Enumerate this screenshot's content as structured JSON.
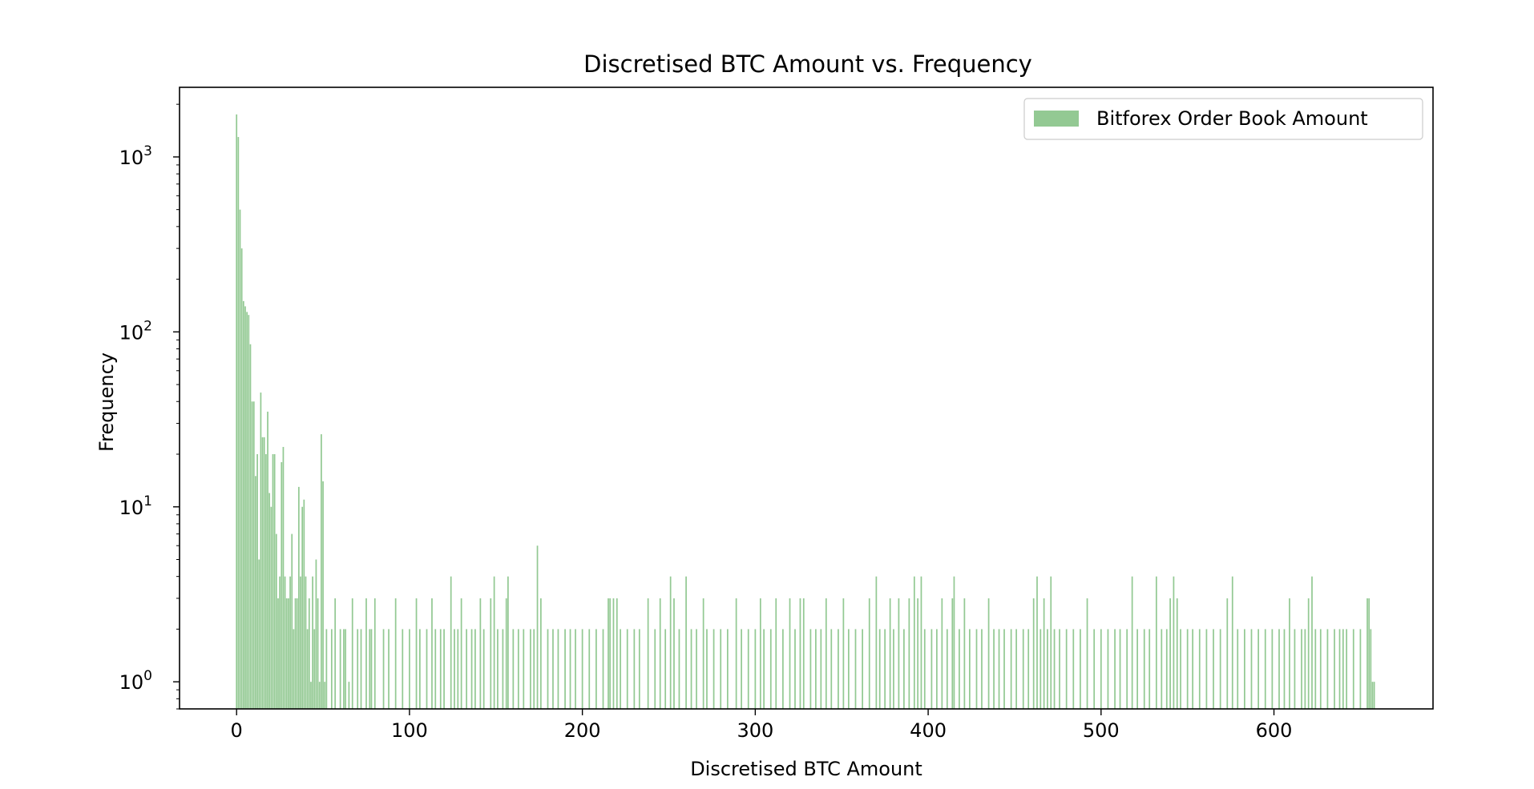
{
  "chart_data": {
    "type": "bar",
    "title": "Discretised BTC Amount vs. Frequency",
    "xlabel": "Discretised BTC Amount",
    "ylabel": "Frequency",
    "y_scale": "log",
    "xlim": [
      -33,
      692
    ],
    "ylim": [
      0.7,
      2500
    ],
    "x_ticks": [
      0,
      100,
      200,
      300,
      400,
      500,
      600
    ],
    "y_ticks": [
      {
        "value": 1,
        "base": "10",
        "exp": "0"
      },
      {
        "value": 10,
        "base": "10",
        "exp": "1"
      },
      {
        "value": 100,
        "base": "10",
        "exp": "2"
      },
      {
        "value": 1000,
        "base": "10",
        "exp": "3"
      }
    ],
    "grid": false,
    "legend_position": "upper right",
    "bar_color": "#93c993",
    "series": [
      {
        "name": "Bitforex Order Book Amount",
        "points": [
          [
            0,
            1750
          ],
          [
            1,
            1300
          ],
          [
            2,
            500
          ],
          [
            3,
            300
          ],
          [
            4,
            150
          ],
          [
            5,
            140
          ],
          [
            6,
            130
          ],
          [
            7,
            125
          ],
          [
            8,
            85
          ],
          [
            9,
            40
          ],
          [
            10,
            40
          ],
          [
            11,
            15
          ],
          [
            12,
            20
          ],
          [
            13,
            5
          ],
          [
            14,
            45
          ],
          [
            15,
            25
          ],
          [
            16,
            25
          ],
          [
            17,
            20
          ],
          [
            18,
            35
          ],
          [
            19,
            12
          ],
          [
            20,
            10
          ],
          [
            21,
            20
          ],
          [
            22,
            20
          ],
          [
            23,
            7
          ],
          [
            24,
            3
          ],
          [
            25,
            4
          ],
          [
            26,
            18
          ],
          [
            27,
            22
          ],
          [
            28,
            4
          ],
          [
            29,
            3
          ],
          [
            30,
            3
          ],
          [
            31,
            4
          ],
          [
            32,
            7
          ],
          [
            33,
            2
          ],
          [
            34,
            3
          ],
          [
            35,
            3
          ],
          [
            36,
            13
          ],
          [
            37,
            4
          ],
          [
            38,
            10
          ],
          [
            39,
            11
          ],
          [
            40,
            4
          ],
          [
            41,
            2
          ],
          [
            42,
            3
          ],
          [
            43,
            1
          ],
          [
            44,
            4
          ],
          [
            45,
            2
          ],
          [
            46,
            5
          ],
          [
            47,
            3
          ],
          [
            48,
            1
          ],
          [
            49,
            26
          ],
          [
            50,
            14
          ],
          [
            51,
            1
          ],
          [
            52,
            2
          ],
          [
            55,
            2
          ],
          [
            57,
            3
          ],
          [
            60,
            2
          ],
          [
            62,
            2
          ],
          [
            63,
            2
          ],
          [
            65,
            1
          ],
          [
            67,
            3
          ],
          [
            70,
            2
          ],
          [
            72,
            2
          ],
          [
            75,
            3
          ],
          [
            77,
            2
          ],
          [
            78,
            2
          ],
          [
            80,
            3
          ],
          [
            85,
            2
          ],
          [
            88,
            2
          ],
          [
            92,
            3
          ],
          [
            96,
            2
          ],
          [
            100,
            2
          ],
          [
            104,
            3
          ],
          [
            106,
            2
          ],
          [
            110,
            2
          ],
          [
            113,
            3
          ],
          [
            115,
            2
          ],
          [
            118,
            2
          ],
          [
            120,
            2
          ],
          [
            124,
            4
          ],
          [
            126,
            2
          ],
          [
            128,
            2
          ],
          [
            130,
            3
          ],
          [
            133,
            2
          ],
          [
            136,
            2
          ],
          [
            138,
            2
          ],
          [
            141,
            3
          ],
          [
            143,
            2
          ],
          [
            147,
            3
          ],
          [
            149,
            4
          ],
          [
            151,
            2
          ],
          [
            154,
            2
          ],
          [
            156,
            3
          ],
          [
            157,
            4
          ],
          [
            160,
            2
          ],
          [
            163,
            2
          ],
          [
            166,
            2
          ],
          [
            170,
            2
          ],
          [
            172,
            2
          ],
          [
            174,
            6
          ],
          [
            176,
            3
          ],
          [
            180,
            2
          ],
          [
            183,
            2
          ],
          [
            186,
            2
          ],
          [
            190,
            2
          ],
          [
            193,
            2
          ],
          [
            196,
            2
          ],
          [
            200,
            2
          ],
          [
            204,
            2
          ],
          [
            208,
            2
          ],
          [
            212,
            2
          ],
          [
            215,
            3
          ],
          [
            216,
            3
          ],
          [
            218,
            3
          ],
          [
            220,
            3
          ],
          [
            222,
            2
          ],
          [
            226,
            2
          ],
          [
            230,
            2
          ],
          [
            233,
            2
          ],
          [
            238,
            3
          ],
          [
            242,
            2
          ],
          [
            245,
            3
          ],
          [
            248,
            2
          ],
          [
            251,
            4
          ],
          [
            253,
            3
          ],
          [
            256,
            2
          ],
          [
            260,
            4
          ],
          [
            263,
            2
          ],
          [
            266,
            2
          ],
          [
            270,
            3
          ],
          [
            272,
            2
          ],
          [
            276,
            2
          ],
          [
            280,
            2
          ],
          [
            284,
            2
          ],
          [
            289,
            3
          ],
          [
            292,
            2
          ],
          [
            296,
            2
          ],
          [
            300,
            2
          ],
          [
            303,
            3
          ],
          [
            305,
            2
          ],
          [
            309,
            2
          ],
          [
            312,
            3
          ],
          [
            316,
            2
          ],
          [
            320,
            3
          ],
          [
            323,
            2
          ],
          [
            326,
            3
          ],
          [
            328,
            3
          ],
          [
            332,
            2
          ],
          [
            335,
            2
          ],
          [
            338,
            2
          ],
          [
            341,
            3
          ],
          [
            344,
            2
          ],
          [
            348,
            2
          ],
          [
            351,
            3
          ],
          [
            354,
            2
          ],
          [
            358,
            2
          ],
          [
            362,
            2
          ],
          [
            366,
            3
          ],
          [
            370,
            4
          ],
          [
            372,
            2
          ],
          [
            375,
            2
          ],
          [
            378,
            3
          ],
          [
            380,
            2
          ],
          [
            383,
            3
          ],
          [
            386,
            2
          ],
          [
            389,
            3
          ],
          [
            392,
            4
          ],
          [
            394,
            3
          ],
          [
            396,
            4
          ],
          [
            398,
            2
          ],
          [
            402,
            2
          ],
          [
            405,
            2
          ],
          [
            408,
            3
          ],
          [
            411,
            2
          ],
          [
            414,
            3
          ],
          [
            415,
            4
          ],
          [
            418,
            2
          ],
          [
            421,
            3
          ],
          [
            424,
            2
          ],
          [
            428,
            2
          ],
          [
            431,
            2
          ],
          [
            435,
            3
          ],
          [
            438,
            2
          ],
          [
            441,
            2
          ],
          [
            444,
            2
          ],
          [
            448,
            2
          ],
          [
            451,
            2
          ],
          [
            455,
            2
          ],
          [
            458,
            2
          ],
          [
            461,
            3
          ],
          [
            463,
            4
          ],
          [
            465,
            2
          ],
          [
            467,
            3
          ],
          [
            469,
            2
          ],
          [
            471,
            4
          ],
          [
            473,
            2
          ],
          [
            476,
            2
          ],
          [
            480,
            2
          ],
          [
            484,
            2
          ],
          [
            488,
            2
          ],
          [
            492,
            3
          ],
          [
            496,
            2
          ],
          [
            500,
            2
          ],
          [
            504,
            2
          ],
          [
            508,
            2
          ],
          [
            511,
            2
          ],
          [
            515,
            2
          ],
          [
            518,
            4
          ],
          [
            521,
            2
          ],
          [
            525,
            2
          ],
          [
            528,
            2
          ],
          [
            532,
            4
          ],
          [
            535,
            2
          ],
          [
            538,
            2
          ],
          [
            540,
            3
          ],
          [
            542,
            4
          ],
          [
            544,
            3
          ],
          [
            546,
            2
          ],
          [
            550,
            2
          ],
          [
            553,
            2
          ],
          [
            557,
            2
          ],
          [
            561,
            2
          ],
          [
            565,
            2
          ],
          [
            569,
            2
          ],
          [
            573,
            3
          ],
          [
            576,
            4
          ],
          [
            579,
            2
          ],
          [
            583,
            2
          ],
          [
            587,
            2
          ],
          [
            591,
            2
          ],
          [
            595,
            2
          ],
          [
            599,
            2
          ],
          [
            603,
            2
          ],
          [
            606,
            2
          ],
          [
            609,
            3
          ],
          [
            612,
            2
          ],
          [
            616,
            2
          ],
          [
            618,
            2
          ],
          [
            620,
            3
          ],
          [
            622,
            4
          ],
          [
            624,
            2
          ],
          [
            627,
            2
          ],
          [
            631,
            2
          ],
          [
            635,
            2
          ],
          [
            638,
            2
          ],
          [
            640,
            2
          ],
          [
            642,
            2
          ],
          [
            646,
            2
          ],
          [
            650,
            2
          ],
          [
            654,
            3
          ],
          [
            655,
            3
          ],
          [
            656,
            2
          ],
          [
            657,
            1
          ],
          [
            658,
            1
          ]
        ]
      }
    ]
  }
}
